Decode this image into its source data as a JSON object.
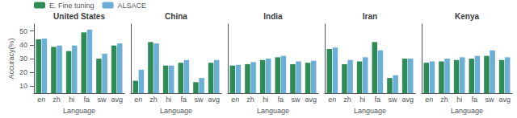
{
  "chart_data": [
    {
      "type": "bar",
      "title": "United States",
      "categories": [
        "en",
        "zh",
        "hi",
        "fa",
        "sw",
        "avg"
      ],
      "series": [
        {
          "name": "E. Fine tuning",
          "color": "#2e8b57",
          "values": [
            44,
            38.5,
            35.5,
            49,
            30,
            39.5
          ]
        },
        {
          "name": "ALSACE",
          "color": "#6baed6",
          "values": [
            44.5,
            39.5,
            39.5,
            51,
            33.5,
            41
          ]
        }
      ],
      "xlabel": "Language",
      "ylabel": "Accuracy(%)",
      "ylim": [
        5,
        55
      ],
      "yticks": [
        10,
        20,
        30,
        40,
        50
      ],
      "grid": false,
      "legend": "upper left"
    },
    {
      "type": "bar",
      "title": "China",
      "categories": [
        "en",
        "zh",
        "hi",
        "fa",
        "sw",
        "avg"
      ],
      "series": [
        {
          "name": "E. Fine tuning",
          "color": "#2e8b57",
          "values": [
            14,
            42,
            25,
            27,
            13,
            27
          ]
        },
        {
          "name": "ALSACE",
          "color": "#6baed6",
          "values": [
            22,
            41,
            25,
            29,
            16,
            29
          ]
        }
      ],
      "xlabel": "Language",
      "ylim": [
        5,
        55
      ],
      "yticks": [
        10,
        20,
        30,
        40,
        50
      ],
      "grid": false,
      "tick_labels": "x"
    },
    {
      "type": "bar",
      "title": "India",
      "categories": [
        "en",
        "zh",
        "hi",
        "fa",
        "sw",
        "avg"
      ],
      "series": [
        {
          "name": "E. Fine tuning",
          "color": "#2e8b57",
          "values": [
            25,
            26,
            29,
            31,
            26,
            27
          ]
        },
        {
          "name": "ALSACE",
          "color": "#6baed6",
          "values": [
            25.5,
            27.5,
            30,
            32,
            28,
            28.5
          ]
        }
      ],
      "xlabel": "Language",
      "ylim": [
        5,
        55
      ],
      "yticks": [
        10,
        20,
        30,
        40,
        50
      ],
      "grid": false,
      "tick_labels": "x"
    },
    {
      "type": "bar",
      "title": "Iran",
      "categories": [
        "en",
        "zh",
        "hi",
        "fa",
        "sw",
        "avg"
      ],
      "series": [
        {
          "name": "E. Fine tuning",
          "color": "#2e8b57",
          "values": [
            37,
            26,
            28,
            42,
            16,
            30
          ]
        },
        {
          "name": "ALSACE",
          "color": "#6baed6",
          "values": [
            38,
            29,
            31,
            36,
            18,
            30
          ]
        }
      ],
      "xlabel": "Language",
      "ylim": [
        5,
        55
      ],
      "yticks": [
        10,
        20,
        30,
        40,
        50
      ],
      "grid": false,
      "tick_labels": "x"
    },
    {
      "type": "bar",
      "title": "Kenya",
      "categories": [
        "en",
        "zh",
        "hi",
        "fa",
        "sw",
        "avg"
      ],
      "series": [
        {
          "name": "E. Fine tuning",
          "color": "#2e8b57",
          "values": [
            27,
            28,
            29,
            30,
            32,
            29
          ]
        },
        {
          "name": "ALSACE",
          "color": "#6baed6",
          "values": [
            28,
            30,
            31,
            32,
            36,
            31
          ]
        }
      ],
      "xlabel": "Language",
      "ylim": [
        5,
        55
      ],
      "yticks": [
        10,
        20,
        30,
        40,
        50
      ],
      "grid": false,
      "tick_labels": "x"
    }
  ]
}
